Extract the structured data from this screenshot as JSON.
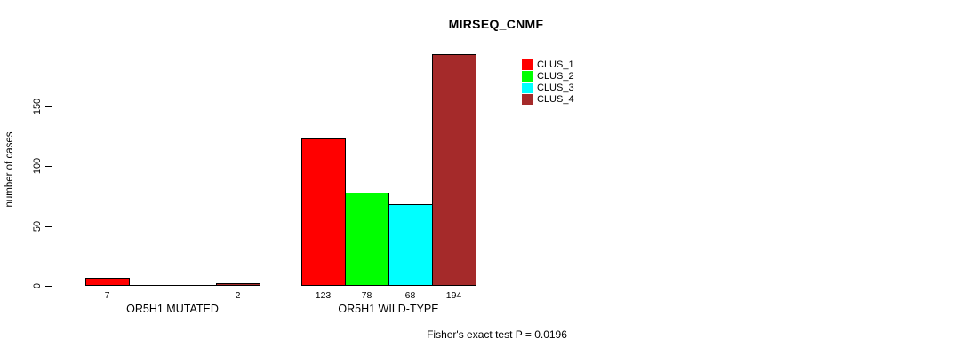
{
  "chart_data": {
    "type": "bar",
    "title": "MIRSEQ_CNMF",
    "ylabel": "number of cases",
    "xlabel": "",
    "categories": [
      "OR5H1 MUTATED",
      "OR5H1 WILD-TYPE"
    ],
    "series": [
      {
        "name": "CLUS_1",
        "color": "#ff0000",
        "values": [
          7,
          123
        ]
      },
      {
        "name": "CLUS_2",
        "color": "#00ff00",
        "values": [
          0,
          78
        ]
      },
      {
        "name": "CLUS_3",
        "color": "#00ffff",
        "values": [
          0,
          68
        ]
      },
      {
        "name": "CLUS_4",
        "color": "#a52a2a",
        "values": [
          2,
          194
        ]
      }
    ],
    "yticks": [
      0,
      50,
      100,
      150
    ],
    "ylim": [
      0,
      194
    ],
    "grid": false,
    "legend_position": "top-right",
    "bar_border_color": "#000000",
    "zero_value_bars_drawn_as_line": true,
    "value_labels_shown_for_nonzero_only": true,
    "annotation": "Fisher's exact test P = 0.0196"
  }
}
